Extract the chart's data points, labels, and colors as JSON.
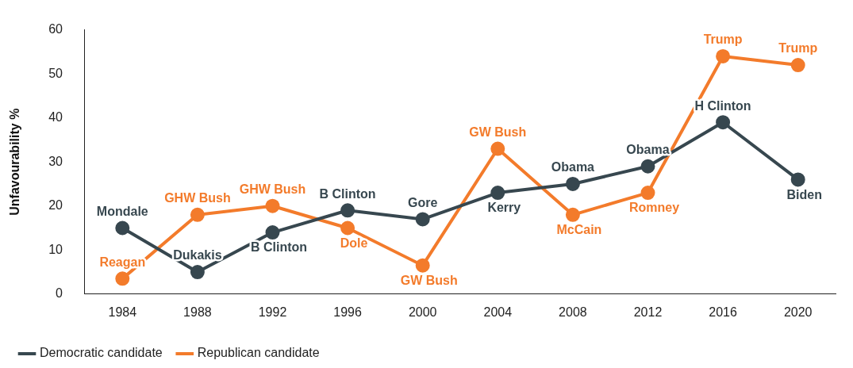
{
  "chart_data": {
    "type": "line",
    "ylabel": "Unfavourability %",
    "categories": [
      "1984",
      "1988",
      "1992",
      "1996",
      "2000",
      "2004",
      "2008",
      "2012",
      "2016",
      "2020"
    ],
    "series": [
      {
        "name": "Democratic candidate",
        "color": "#37474f",
        "values": [
          15,
          5,
          14,
          19,
          17,
          23,
          25,
          29,
          39,
          26
        ]
      },
      {
        "name": "Republican candidate",
        "color": "#f37b2b",
        "values": [
          3.5,
          18,
          20,
          15,
          6.5,
          33,
          18,
          23,
          54,
          52
        ]
      }
    ],
    "annotations": [
      {
        "text": "Mondale",
        "x": "1984",
        "y": 15
      },
      {
        "text": "Dukakis",
        "x": "1988",
        "y": 5
      },
      {
        "text": "B Clinton",
        "x": "1992",
        "y": 14
      },
      {
        "text": "B Clinton",
        "x": "1996",
        "y": 19
      },
      {
        "text": "Gore",
        "x": "2000",
        "y": 17
      },
      {
        "text": "Kerry",
        "x": "2004",
        "y": 23
      },
      {
        "text": "Obama",
        "x": "2008",
        "y": 25
      },
      {
        "text": "Obama",
        "x": "2012",
        "y": 29
      },
      {
        "text": "H Clinton",
        "x": "2016",
        "y": 39
      },
      {
        "text": "Biden",
        "x": "2020",
        "y": 26
      },
      {
        "text": "Reagan",
        "x": "1984",
        "y": 3.5
      },
      {
        "text": "GHW Bush",
        "x": "1988",
        "y": 18
      },
      {
        "text": "GHW Bush",
        "x": "1992",
        "y": 20
      },
      {
        "text": "Dole",
        "x": "1996",
        "y": 15
      },
      {
        "text": "GW Bush",
        "x": "2000",
        "y": 6.5
      },
      {
        "text": "GW Bush",
        "x": "2004",
        "y": 33
      },
      {
        "text": "McCain",
        "x": "2008",
        "y": 18
      },
      {
        "text": "Romney",
        "x": "2012",
        "y": 23
      },
      {
        "text": "Trump",
        "x": "2016",
        "y": 54
      },
      {
        "text": "Trump",
        "x": "2020",
        "y": 52
      }
    ],
    "ylim": [
      0,
      60
    ],
    "yticks": [
      0,
      10,
      20,
      30,
      40,
      50,
      60
    ],
    "grid": false,
    "legend": "bottom left",
    "marker": "circle",
    "line_style": "solid"
  }
}
